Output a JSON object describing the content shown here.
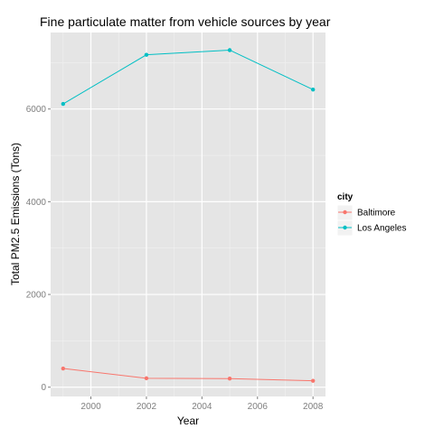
{
  "chart_data": {
    "type": "line",
    "title": "Fine particulate matter from vehicle sources by year",
    "xlabel": "Year",
    "ylabel": "Total PM2.5 Emissions (Tons)",
    "x": [
      1999,
      2002,
      2005,
      2008
    ],
    "xlim": [
      1998.55,
      2008.45
    ],
    "ylim": [
      -200,
      7650
    ],
    "xticks": [
      2000,
      2002,
      2004,
      2006,
      2008
    ],
    "yticks": [
      0,
      2000,
      4000,
      6000
    ],
    "grid": true,
    "legend": {
      "title": "city",
      "position": "right"
    },
    "series": [
      {
        "name": "Baltimore",
        "color": "#F8766D",
        "values": [
          403,
          192,
          185,
          138
        ]
      },
      {
        "name": "Los Angeles",
        "color": "#00BFC4",
        "values": [
          6110,
          7170,
          7270,
          6420
        ]
      }
    ]
  }
}
